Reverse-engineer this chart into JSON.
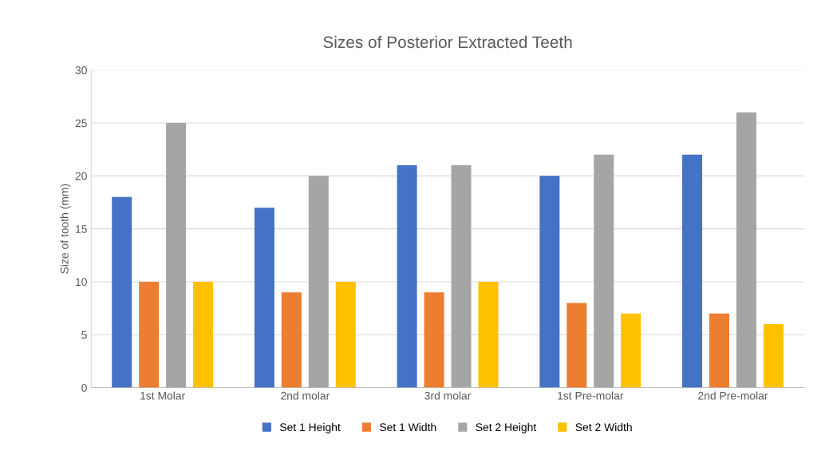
{
  "chart_data": {
    "type": "bar",
    "title": "Sizes of Posterior Extracted Teeth",
    "ylabel": "Size of tooth (mm)",
    "categories": [
      "1st Molar",
      "2nd molar",
      "3rd molar",
      "1st Pre-molar",
      "2nd Pre-molar"
    ],
    "series": [
      {
        "name": "Set 1 Height",
        "color": "#4472c4",
        "values": [
          18,
          17,
          21,
          20,
          22
        ]
      },
      {
        "name": "Set 1 Width",
        "color": "#ed7d31",
        "values": [
          10,
          9,
          9,
          8,
          7
        ]
      },
      {
        "name": "Set 2 Height",
        "color": "#a5a5a5",
        "values": [
          25,
          20,
          21,
          22,
          26
        ]
      },
      {
        "name": "Set 2 Width",
        "color": "#ffc000",
        "values": [
          10,
          10,
          10,
          7,
          6
        ]
      }
    ],
    "ylim": [
      0,
      30
    ],
    "yticks": [
      0,
      5,
      10,
      15,
      20,
      25,
      30
    ],
    "grid": "y",
    "legend": "bottom"
  }
}
